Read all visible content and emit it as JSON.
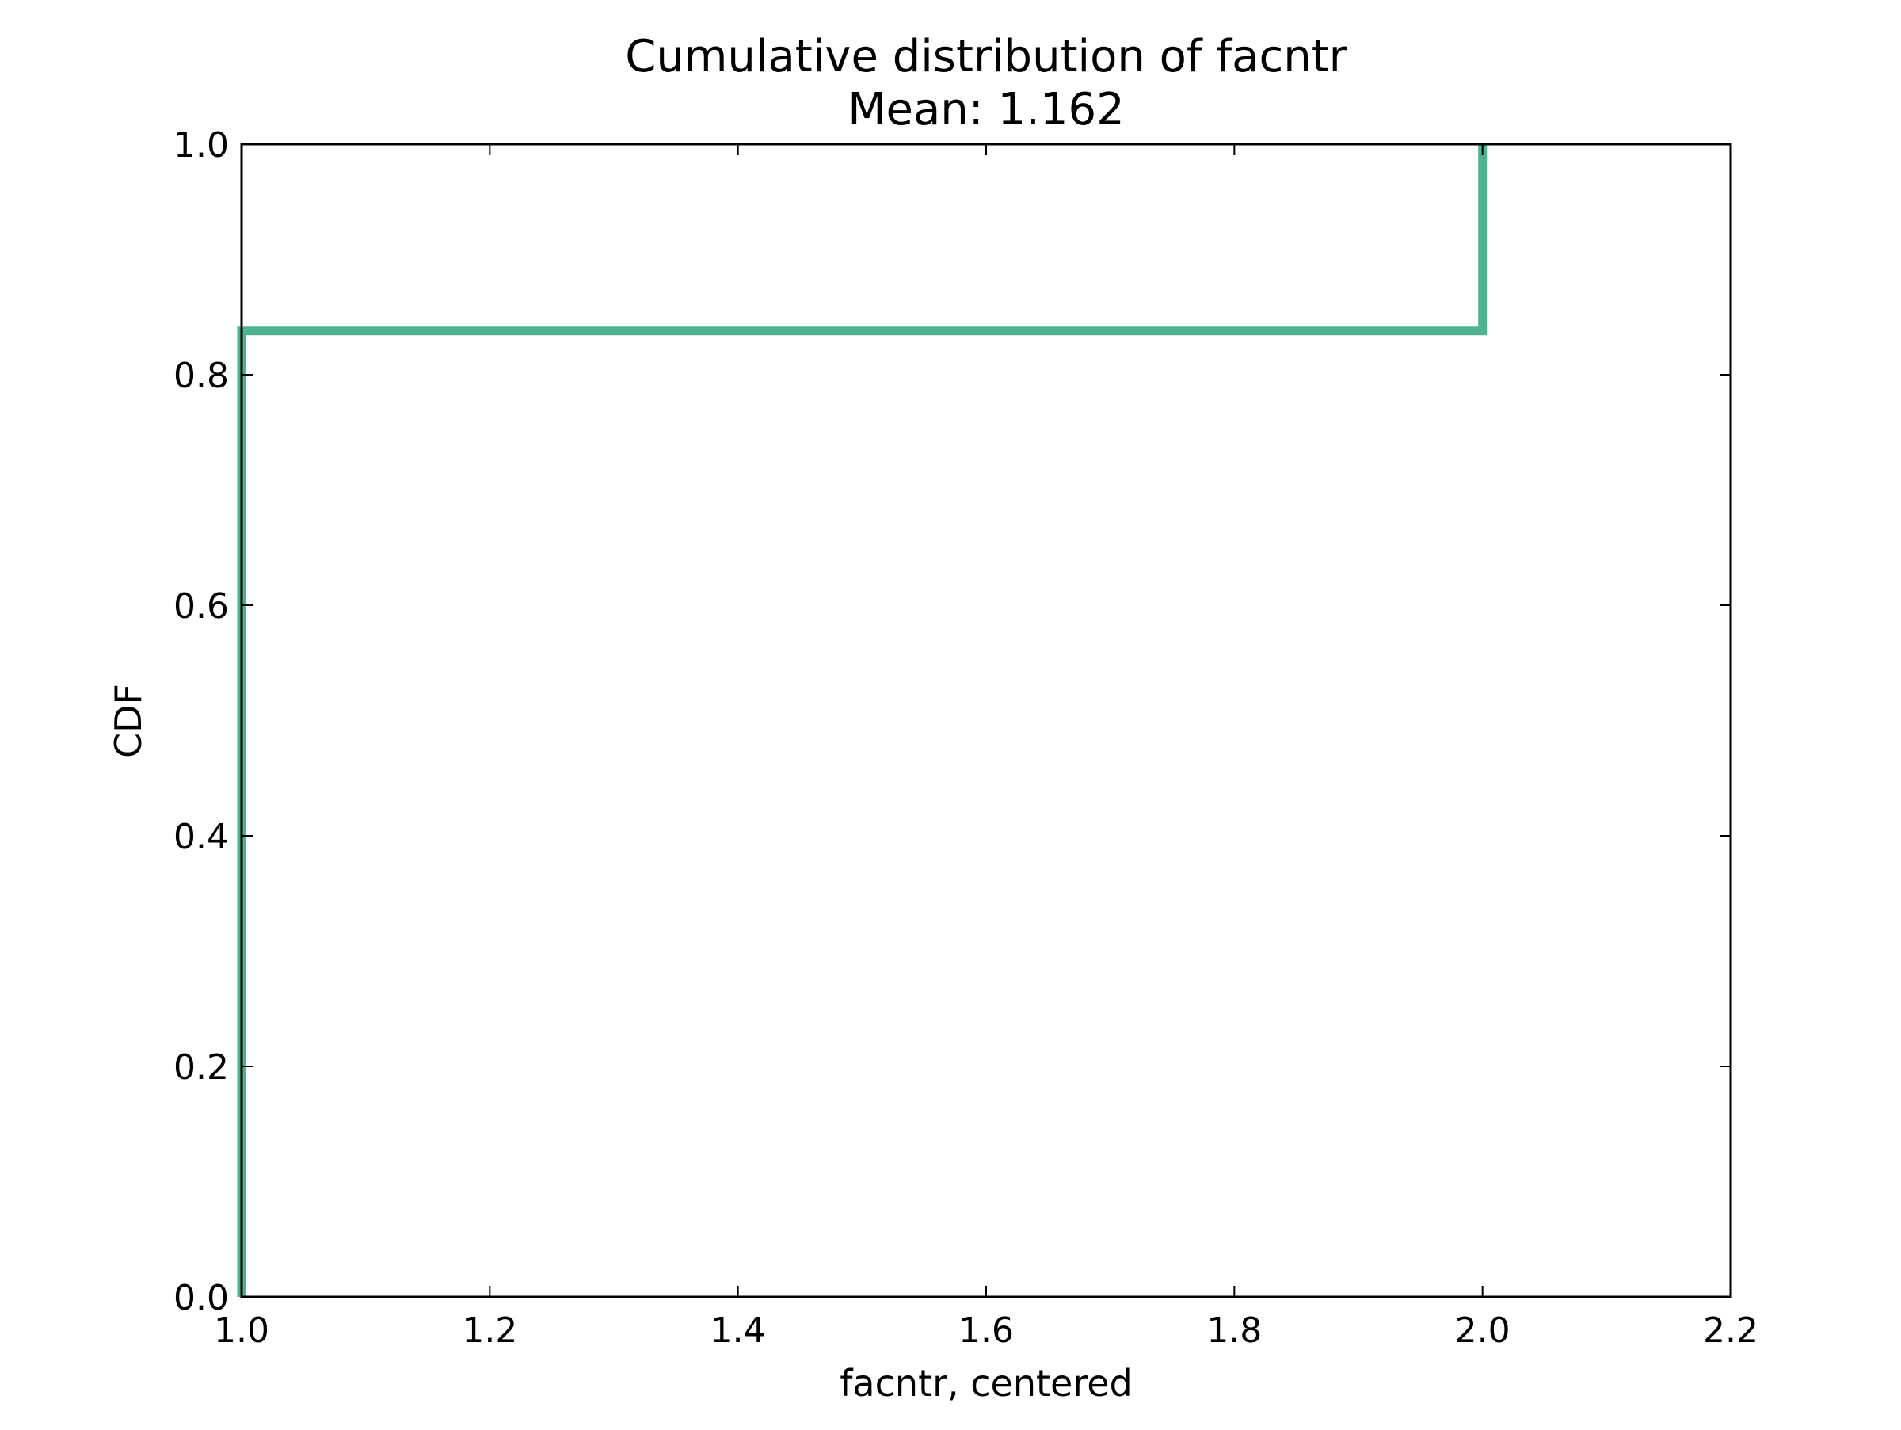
{
  "chart_data": {
    "type": "line",
    "title": "Cumulative distribution of facntr",
    "subtitle": "Mean: 1.162",
    "xlabel": "facntr, centered",
    "ylabel": "CDF",
    "xlim": [
      1.0,
      2.2
    ],
    "ylim": [
      0.0,
      1.0
    ],
    "x_ticks": [
      "1.0",
      "1.2",
      "1.4",
      "1.6",
      "1.8",
      "2.0",
      "2.2"
    ],
    "y_ticks": [
      "0.0",
      "0.2",
      "0.4",
      "0.6",
      "0.8",
      "1.0"
    ],
    "grid": false,
    "step": true,
    "series": [
      {
        "color": "#4fb391",
        "x": [
          1.0,
          1.0,
          2.0,
          2.0
        ],
        "y": [
          0.0,
          0.838,
          0.838,
          1.0
        ]
      }
    ]
  }
}
